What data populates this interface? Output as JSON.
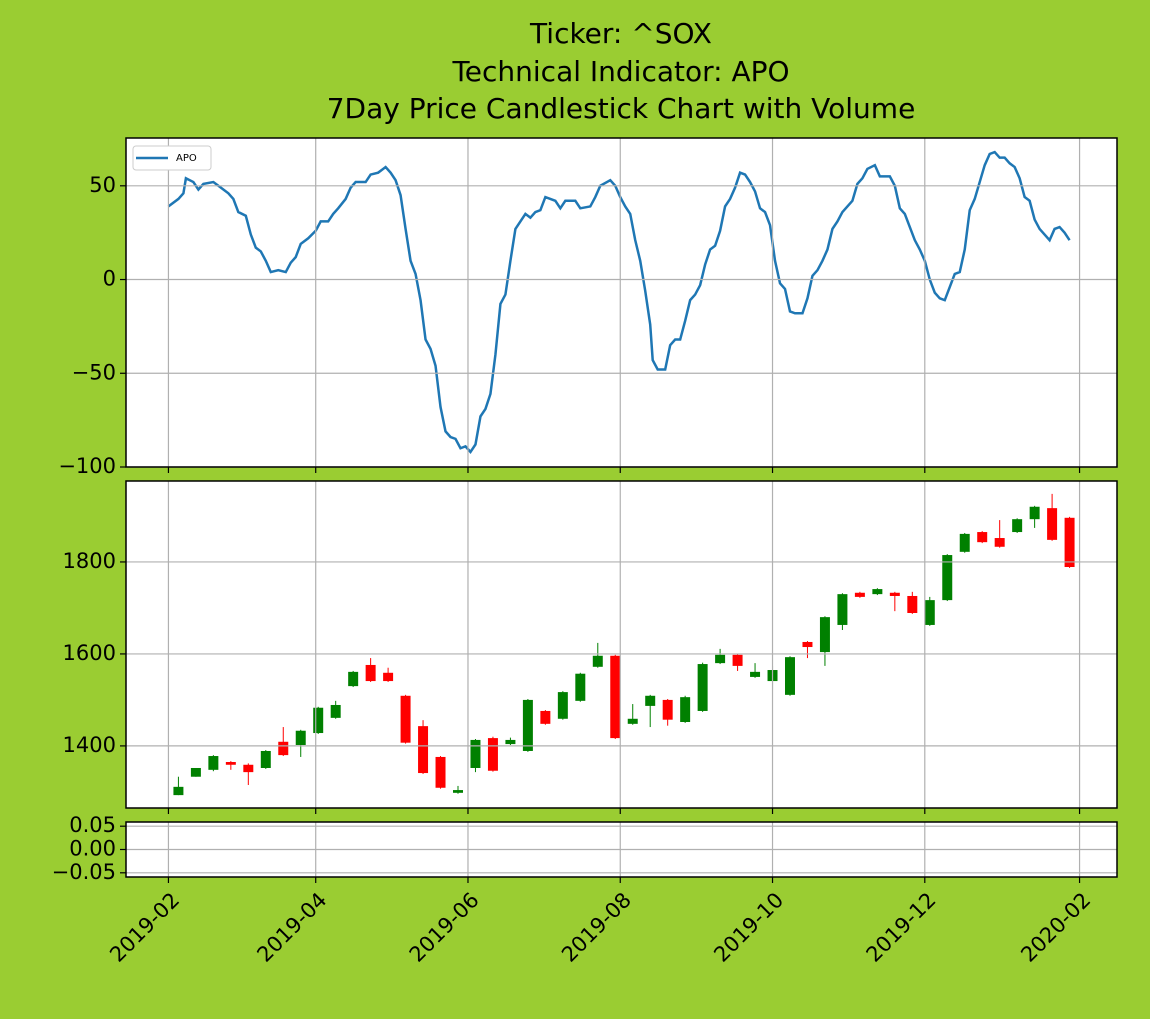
{
  "chart_data": [
    {
      "type": "line",
      "title": [
        "Ticker: ^SOX",
        "Technical Indicator: APO",
        "7Day Price Candlestick Chart with Volume"
      ],
      "x": [
        0,
        4,
        6,
        7,
        10,
        12,
        14,
        18,
        20,
        24,
        26,
        28,
        31,
        33,
        35,
        37,
        39,
        41,
        44,
        47,
        49,
        51,
        53,
        56,
        59,
        61,
        64,
        66,
        68,
        71,
        73,
        75,
        79,
        81,
        84,
        87,
        89,
        91,
        93,
        95,
        97,
        99,
        101,
        103,
        105,
        107,
        109,
        111,
        113,
        115,
        117,
        119,
        121,
        123,
        125,
        127,
        129,
        131,
        133,
        135,
        137,
        139,
        141,
        143,
        145,
        147,
        149,
        151,
        153,
        155,
        157,
        159,
        163,
        165,
        169,
        171,
        173,
        177,
        179,
        181,
        183,
        185,
        187,
        189,
        191,
        193,
        194,
        196,
        199,
        201,
        203,
        205,
        207,
        209,
        211,
        213,
        215,
        217,
        219,
        221,
        223,
        225,
        227,
        229,
        231,
        233,
        235,
        237,
        239,
        241,
        243,
        245,
        247,
        249,
        251,
        254,
        256,
        258,
        260,
        262,
        264,
        266,
        268,
        270,
        272,
        274,
        276,
        278,
        280,
        283,
        285,
        289,
        291,
        293,
        295,
        297,
        299,
        301,
        303,
        305,
        307,
        309,
        311,
        313,
        315,
        317,
        319,
        321,
        323,
        325,
        327,
        329,
        331,
        333,
        335,
        337,
        339,
        341,
        343,
        345,
        347,
        349,
        351,
        353,
        355,
        357,
        359,
        361
      ],
      "series": [
        {
          "name": "APO",
          "color": "#1f77b4",
          "values": [
            39,
            43,
            46,
            54,
            52,
            48,
            51,
            52,
            50,
            46,
            43,
            36,
            34,
            24,
            17,
            15,
            10,
            4,
            5,
            4,
            9,
            12,
            19,
            22,
            26,
            31,
            31,
            35,
            38,
            43,
            49,
            52,
            52,
            56,
            57,
            60,
            57,
            53,
            45,
            27,
            10,
            3,
            -11,
            -32,
            -37,
            -46,
            -68,
            -81,
            -84,
            -85,
            -90,
            -89,
            -92,
            -88,
            -73,
            -69,
            -61,
            -40,
            -13,
            -8,
            10,
            27,
            31,
            35,
            33,
            36,
            37,
            44,
            43,
            42,
            38,
            42,
            42,
            38,
            39,
            44,
            50,
            53,
            50,
            44,
            39,
            35,
            21,
            10,
            -6,
            -24,
            -43,
            -48,
            -48,
            -35,
            -32,
            -32,
            -22,
            -11,
            -8,
            -3,
            8,
            16,
            18,
            26,
            39,
            43,
            49,
            57,
            56,
            52,
            47,
            38,
            36,
            29,
            10,
            -2,
            -5,
            -17,
            -18,
            -18,
            -10,
            2,
            5,
            10,
            16,
            27,
            31,
            36,
            39,
            42,
            51,
            54,
            59,
            61,
            55,
            55,
            50,
            38,
            35,
            28,
            21,
            16,
            10,
            0,
            -7,
            -10,
            -11,
            -4,
            3,
            4,
            16,
            37,
            43,
            52,
            61,
            67,
            68,
            65,
            65,
            62,
            60,
            54,
            44,
            42,
            32,
            27,
            24,
            21,
            27,
            28,
            25,
            21
          ]
        }
      ],
      "legend": "upper left",
      "xlim": [
        -17,
        380
      ],
      "xticks": [
        0,
        59,
        120,
        181,
        242,
        303,
        365
      ],
      "ylim": [
        -100,
        75.5
      ],
      "yticks": [
        {
          "value": -100,
          "label": "−100"
        },
        {
          "value": -50,
          "label": "−50"
        },
        0,
        50
      ],
      "grid": true
    },
    {
      "type": "candlestick",
      "x": [
        4,
        11,
        18,
        25,
        32,
        39,
        46,
        53,
        60,
        67,
        74,
        81,
        88,
        95,
        102,
        109,
        116,
        123,
        130,
        137,
        144,
        151,
        158,
        165,
        172,
        179,
        186,
        193,
        200,
        207,
        214,
        221,
        228,
        235,
        242,
        249,
        256,
        263,
        270,
        277,
        284,
        291,
        298,
        305,
        312,
        319,
        326,
        333,
        340,
        347,
        354,
        361
      ],
      "open": [
        1293,
        1333,
        1348,
        1365,
        1359,
        1352,
        1409,
        1402,
        1428,
        1461,
        1530,
        1576,
        1559,
        1509,
        1443,
        1376,
        1298,
        1352,
        1417,
        1404,
        1389,
        1476,
        1459,
        1498,
        1572,
        1596,
        1448,
        1487,
        1500,
        1452,
        1476,
        1580,
        1598,
        1550,
        1541,
        1511,
        1626,
        1604,
        1663,
        1733,
        1730,
        1733,
        1726,
        1663,
        1717,
        1822,
        1865,
        1852,
        1865,
        1893,
        1917,
        1896
      ],
      "high": [
        1333,
        1352,
        1380,
        1367,
        1362,
        1391,
        1441,
        1435,
        1485,
        1498,
        1563,
        1591,
        1570,
        1511,
        1456,
        1378,
        1313,
        1415,
        1420,
        1418,
        1502,
        1478,
        1519,
        1559,
        1624,
        1598,
        1491,
        1511,
        1502,
        1509,
        1581,
        1611,
        1600,
        1580,
        1574,
        1595,
        1628,
        1682,
        1732,
        1735,
        1743,
        1735,
        1735,
        1724,
        1817,
        1863,
        1867,
        1891,
        1895,
        1922,
        1948,
        1898
      ],
      "low": [
        1293,
        1333,
        1345,
        1348,
        1315,
        1350,
        1378,
        1376,
        1426,
        1459,
        1528,
        1539,
        1539,
        1405,
        1339,
        1307,
        1296,
        1343,
        1344,
        1402,
        1387,
        1446,
        1457,
        1496,
        1570,
        1415,
        1446,
        1441,
        1444,
        1450,
        1474,
        1578,
        1563,
        1548,
        1522,
        1509,
        1591,
        1574,
        1652,
        1722,
        1728,
        1693,
        1687,
        1661,
        1715,
        1820,
        1841,
        1831,
        1863,
        1874,
        1846,
        1787
      ],
      "close": [
        1311,
        1352,
        1378,
        1359,
        1343,
        1389,
        1380,
        1433,
        1483,
        1489,
        1561,
        1541,
        1541,
        1407,
        1341,
        1309,
        1304,
        1413,
        1346,
        1413,
        1500,
        1448,
        1517,
        1557,
        1596,
        1417,
        1459,
        1509,
        1457,
        1506,
        1578,
        1598,
        1574,
        1561,
        1565,
        1593,
        1615,
        1680,
        1730,
        1724,
        1741,
        1726,
        1689,
        1717,
        1815,
        1861,
        1843,
        1833,
        1893,
        1920,
        1848,
        1789
      ],
      "up_color": "green",
      "down_color": "red",
      "xlim": [
        -17,
        380
      ],
      "xticks": [
        0,
        59,
        120,
        181,
        242,
        303,
        365
      ],
      "ylim": [
        1265,
        1976
      ],
      "yticks": [
        1400,
        1600,
        1800
      ],
      "grid": true
    },
    {
      "type": "bar",
      "xlim": [
        -17,
        380
      ],
      "xticks": [
        {
          "value": 0,
          "label": "2019-02"
        },
        {
          "value": 59,
          "label": "2019-04"
        },
        {
          "value": 120,
          "label": "2019-06"
        },
        {
          "value": 181,
          "label": "2019-08"
        },
        {
          "value": 242,
          "label": "2019-10"
        },
        {
          "value": 303,
          "label": "2019-12"
        },
        {
          "value": 365,
          "label": "2020-02"
        }
      ],
      "ylim": [
        -0.059,
        0.059
      ],
      "yticks": [
        {
          "value": -0.05,
          "label": "−0.05"
        },
        {
          "value": 0,
          "label": "0.00"
        },
        0.05
      ],
      "grid": true
    }
  ]
}
